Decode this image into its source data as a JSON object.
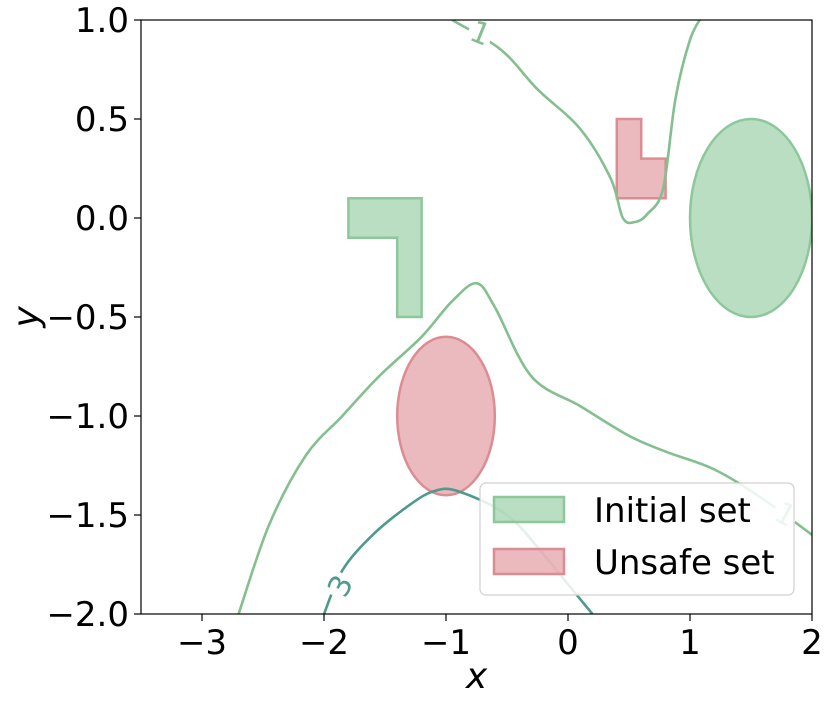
{
  "chart_data": {
    "type": "contour",
    "xlabel": "x",
    "ylabel": "y",
    "xlim": [
      -3.5,
      2.0
    ],
    "ylim": [
      -2.0,
      1.0
    ],
    "xticks": [
      -3,
      -2,
      -1,
      0,
      1,
      2
    ],
    "xtick_labels": [
      "−3",
      "−2",
      "−1",
      "0",
      "1",
      "2"
    ],
    "yticks": [
      1.0,
      0.5,
      0.0,
      -0.5,
      -1.0,
      -1.5,
      -2.0
    ],
    "ytick_labels": [
      "1.0",
      "0.5",
      "0.0",
      "−0.5",
      "−1.0",
      "−1.5",
      "−2.0"
    ],
    "grid": false,
    "legend_position": "lower-right",
    "colors": {
      "initial": "#8cc89a",
      "unsafe": "#dc8c92",
      "contour_1": "#84bf8f",
      "contour_3": "#4f9a8c"
    },
    "regions": [
      {
        "name": "Initial set",
        "kind": "polygon",
        "points": [
          [
            -1.8,
            0.1
          ],
          [
            -1.2,
            0.1
          ],
          [
            -1.2,
            -0.5
          ],
          [
            -1.4,
            -0.5
          ],
          [
            -1.4,
            -0.1
          ],
          [
            -1.8,
            -0.1
          ]
        ]
      },
      {
        "name": "Initial set",
        "kind": "ellipse",
        "center": [
          1.5,
          0.0
        ],
        "rx": 0.5,
        "ry": 0.5
      },
      {
        "name": "Unsafe set",
        "kind": "polygon",
        "points": [
          [
            0.4,
            0.5
          ],
          [
            0.6,
            0.5
          ],
          [
            0.6,
            0.3
          ],
          [
            0.8,
            0.3
          ],
          [
            0.8,
            0.1
          ],
          [
            0.4,
            0.1
          ]
        ]
      },
      {
        "name": "Unsafe set",
        "kind": "ellipse",
        "center": [
          -1.0,
          -1.0
        ],
        "rx": 0.4,
        "ry": 0.4
      }
    ],
    "contours": [
      {
        "level": "1",
        "points": [
          [
            -0.95,
            1.0
          ],
          [
            -0.55,
            0.85
          ],
          [
            -0.25,
            0.65
          ],
          [
            0.1,
            0.45
          ],
          [
            0.35,
            0.2
          ],
          [
            0.45,
            0.0
          ],
          [
            0.55,
            -0.02
          ],
          [
            0.65,
            0.02
          ],
          [
            0.78,
            0.15
          ],
          [
            0.88,
            0.6
          ],
          [
            1.0,
            0.9
          ],
          [
            1.1,
            1.02
          ]
        ]
      },
      {
        "level": "1",
        "points": [
          [
            -2.7,
            -2.0
          ],
          [
            -2.45,
            -1.55
          ],
          [
            -2.15,
            -1.2
          ],
          [
            -1.85,
            -1.0
          ],
          [
            -1.55,
            -0.8
          ],
          [
            -1.2,
            -0.6
          ],
          [
            -0.95,
            -0.42
          ],
          [
            -0.75,
            -0.33
          ],
          [
            -0.6,
            -0.45
          ],
          [
            -0.3,
            -0.8
          ],
          [
            0.1,
            -0.95
          ],
          [
            0.5,
            -1.1
          ],
          [
            0.8,
            -1.18
          ],
          [
            1.2,
            -1.27
          ],
          [
            1.6,
            -1.42
          ],
          [
            2.0,
            -1.6
          ]
        ]
      },
      {
        "level": "3",
        "points": [
          [
            -2.0,
            -2.0
          ],
          [
            -1.85,
            -1.78
          ],
          [
            -1.6,
            -1.6
          ],
          [
            -1.3,
            -1.45
          ],
          [
            -1.1,
            -1.38
          ],
          [
            -0.9,
            -1.38
          ],
          [
            -0.5,
            -1.5
          ],
          [
            -0.2,
            -1.7
          ],
          [
            0.0,
            -1.85
          ],
          [
            0.2,
            -2.0
          ]
        ]
      }
    ],
    "contour_labels": [
      {
        "text": "1",
        "x": -0.72,
        "y": 0.93,
        "angle": 22,
        "level": "1"
      },
      {
        "text": "1",
        "x": 1.78,
        "y": -1.5,
        "angle": 28,
        "level": "1"
      },
      {
        "text": "3",
        "x": -1.86,
        "y": -1.86,
        "angle": -62,
        "level": "3"
      }
    ],
    "legend": [
      {
        "label": "Initial set",
        "color": "#8cc89a"
      },
      {
        "label": "Unsafe set",
        "color": "#dc8c92"
      }
    ]
  }
}
